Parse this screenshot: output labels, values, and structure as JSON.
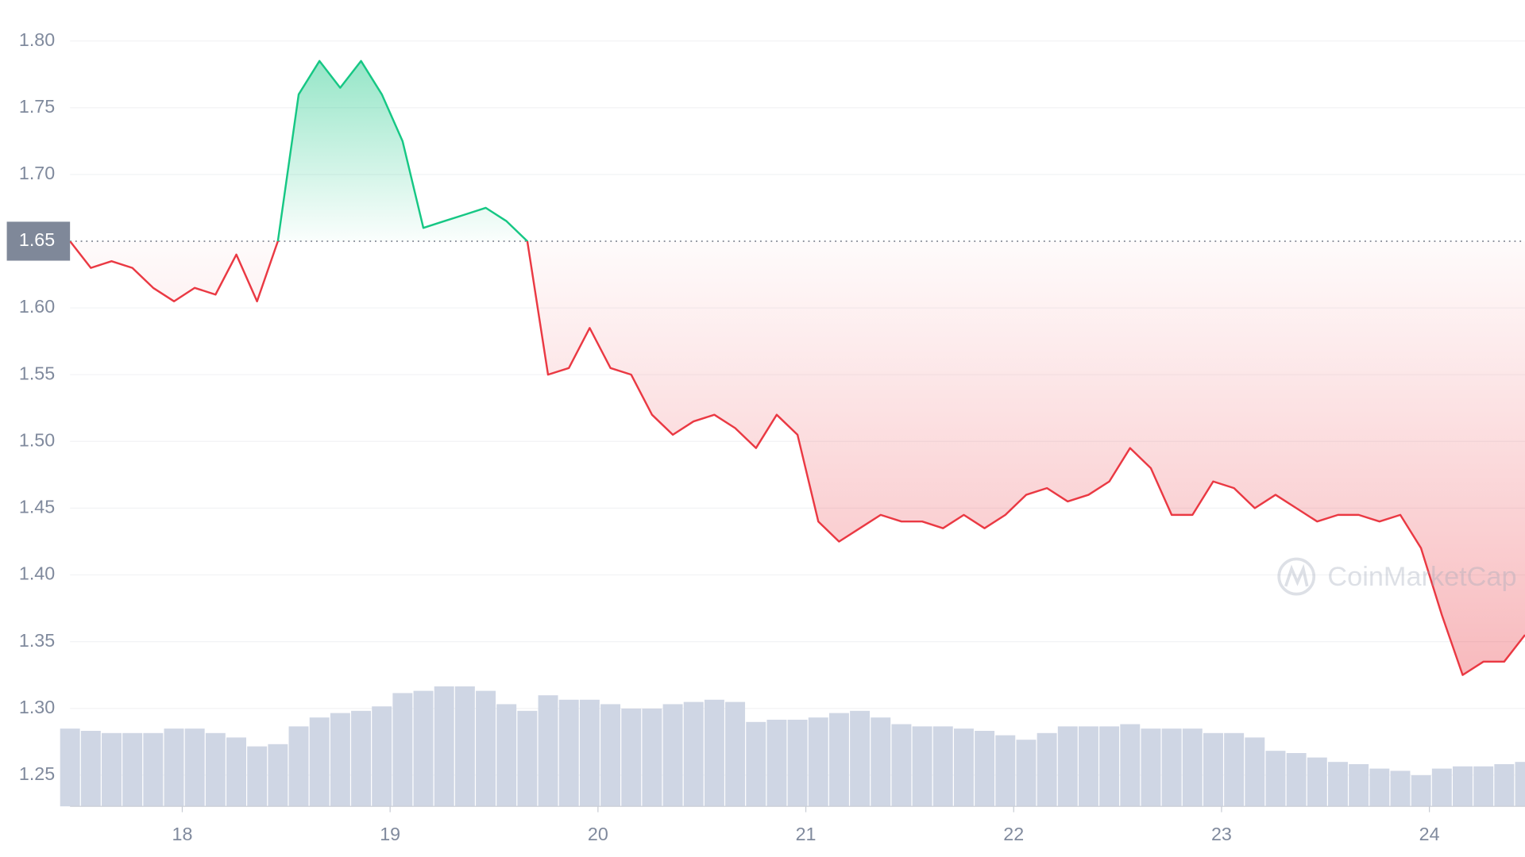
{
  "chart_data": {
    "type": "line",
    "x": [
      17.46,
      17.56,
      17.66,
      17.76,
      17.86,
      17.96,
      18.06,
      18.16,
      18.26,
      18.36,
      18.46,
      18.56,
      18.66,
      18.76,
      18.86,
      18.96,
      19.06,
      19.16,
      19.26,
      19.36,
      19.46,
      19.56,
      19.66,
      19.76,
      19.86,
      19.96,
      20.06,
      20.16,
      20.26,
      20.36,
      20.46,
      20.56,
      20.66,
      20.76,
      20.86,
      20.96,
      21.06,
      21.16,
      21.26,
      21.36,
      21.46,
      21.56,
      21.66,
      21.76,
      21.86,
      21.96,
      22.06,
      22.16,
      22.26,
      22.36,
      22.46,
      22.56,
      22.66,
      22.76,
      22.86,
      22.96,
      23.06,
      23.16,
      23.26,
      23.36,
      23.46,
      23.56,
      23.66,
      23.76,
      23.86,
      23.96,
      24.06,
      24.16,
      24.26,
      24.36,
      24.46
    ],
    "series": [
      {
        "values": [
          1.65,
          1.63,
          1.635,
          1.63,
          1.615,
          1.605,
          1.615,
          1.61,
          1.64,
          1.605,
          1.65,
          1.76,
          1.785,
          1.765,
          1.785,
          1.76,
          1.725,
          1.66,
          1.665,
          1.67,
          1.675,
          1.665,
          1.65,
          1.55,
          1.555,
          1.585,
          1.555,
          1.55,
          1.52,
          1.505,
          1.515,
          1.52,
          1.51,
          1.495,
          1.52,
          1.505,
          1.44,
          1.425,
          1.435,
          1.445,
          1.44,
          1.44,
          1.435,
          1.445,
          1.435,
          1.445,
          1.46,
          1.465,
          1.455,
          1.46,
          1.47,
          1.495,
          1.48,
          1.445,
          1.445,
          1.47,
          1.465,
          1.45,
          1.46,
          1.45,
          1.44,
          1.445,
          1.445,
          1.44,
          1.445,
          1.42,
          1.37,
          1.325,
          1.335,
          1.335,
          1.355
        ]
      },
      {
        "type": "bar",
        "axis": "y2",
        "color": "#cfd6e4",
        "values": [
          35,
          34,
          33,
          33,
          33,
          35,
          35,
          33,
          31,
          27,
          28,
          36,
          40,
          42,
          43,
          45,
          51,
          52,
          54,
          54,
          52,
          46,
          43,
          50,
          48,
          48,
          46,
          44,
          44,
          46,
          47,
          48,
          47,
          38,
          39,
          39,
          40,
          42,
          43,
          40,
          37,
          36,
          36,
          35,
          34,
          32,
          30,
          33,
          36,
          36,
          36,
          37,
          35,
          35,
          35,
          33,
          33,
          31,
          25,
          24,
          22,
          20,
          19,
          17,
          16,
          14,
          17,
          18,
          18,
          19,
          20
        ]
      }
    ],
    "baseline": 1.65,
    "up_color": "#16c784",
    "down_color": "#ea3943",
    "xlim": [
      17.46,
      24.46
    ],
    "xticks": [
      18,
      19,
      20,
      21,
      22,
      23,
      24
    ],
    "ylim": [
      1.2266,
      1.8307
    ],
    "yticks": [
      1.25,
      {
        "value": 1.3,
        "label": "1.30"
      },
      1.35,
      {
        "value": 1.4,
        "label": "1.40"
      },
      1.45,
      {
        "value": 1.5,
        "label": "1.50"
      },
      1.55,
      {
        "value": 1.6,
        "label": "1.60"
      },
      {
        "value": 1.7,
        "label": "1.70"
      },
      1.75,
      {
        "value": 1.8,
        "label": "1.80"
      }
    ],
    "y2lim": [
      0,
      363
    ],
    "grid": true,
    "watermark": "CoinMarketCap"
  }
}
